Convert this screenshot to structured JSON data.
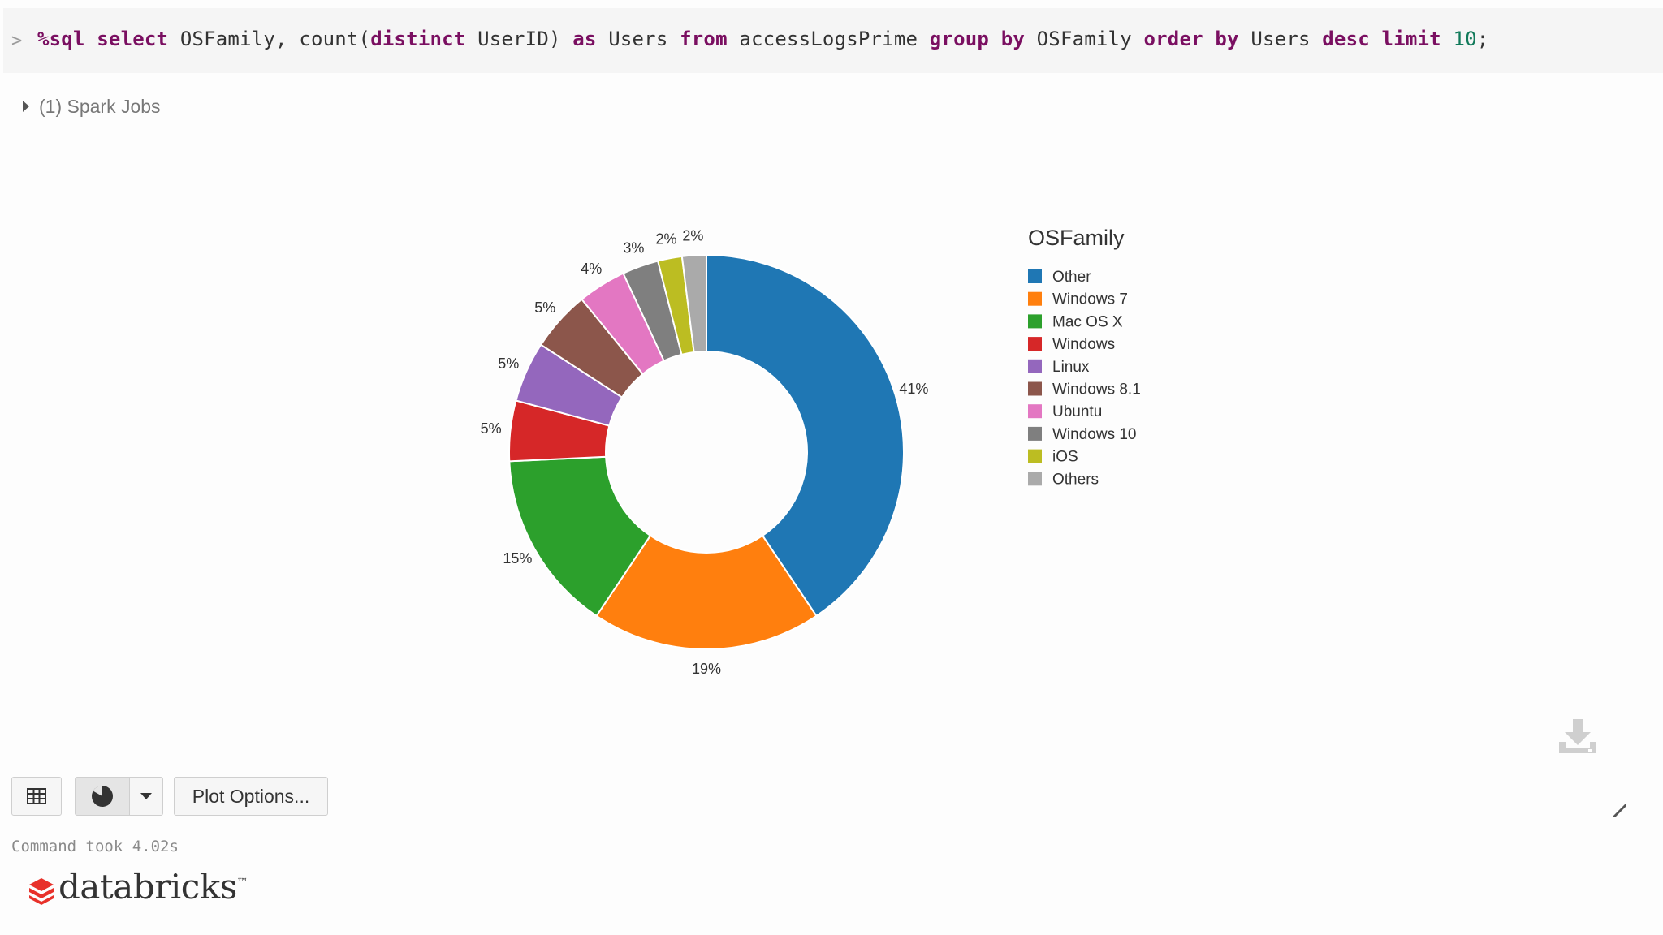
{
  "code": {
    "prompt": ">",
    "tokens": [
      {
        "t": "%sql",
        "k": "kw"
      },
      {
        "t": " ",
        "k": ""
      },
      {
        "t": "select",
        "k": "kw"
      },
      {
        "t": " OSFamily, count(",
        "k": ""
      },
      {
        "t": "distinct",
        "k": "kw"
      },
      {
        "t": " UserID) ",
        "k": ""
      },
      {
        "t": "as",
        "k": "kw"
      },
      {
        "t": " Users ",
        "k": ""
      },
      {
        "t": "from",
        "k": "kw"
      },
      {
        "t": " accessLogsPrime ",
        "k": ""
      },
      {
        "t": "group",
        "k": "kw"
      },
      {
        "t": " ",
        "k": ""
      },
      {
        "t": "by",
        "k": "kw"
      },
      {
        "t": " OSFamily ",
        "k": ""
      },
      {
        "t": "order",
        "k": "kw"
      },
      {
        "t": " ",
        "k": ""
      },
      {
        "t": "by",
        "k": "kw"
      },
      {
        "t": " Users ",
        "k": ""
      },
      {
        "t": "desc",
        "k": "kw"
      },
      {
        "t": " ",
        "k": ""
      },
      {
        "t": "limit",
        "k": "kw"
      },
      {
        "t": " ",
        "k": ""
      },
      {
        "t": "10",
        "k": "num"
      },
      {
        "t": ";",
        "k": ""
      }
    ]
  },
  "jobs": {
    "label": "(1) Spark Jobs"
  },
  "chart_data": {
    "type": "pie",
    "donut": true,
    "legend_title": "OSFamily",
    "legend_position": "right",
    "slices": [
      {
        "label": "Other",
        "value": 41,
        "display": "41%",
        "color": "#1f77b4"
      },
      {
        "label": "Windows 7",
        "value": 19,
        "display": "19%",
        "color": "#ff7f0e"
      },
      {
        "label": "Mac OS X",
        "value": 15,
        "display": "15%",
        "color": "#2ca02c"
      },
      {
        "label": "Windows",
        "value": 5,
        "display": "5%",
        "color": "#d62728"
      },
      {
        "label": "Linux",
        "value": 5,
        "display": "5%",
        "color": "#9467bd"
      },
      {
        "label": "Windows 8.1",
        "value": 5,
        "display": "5%",
        "color": "#8c564b"
      },
      {
        "label": "Ubuntu",
        "value": 4,
        "display": "4%",
        "color": "#e377c2"
      },
      {
        "label": "Windows 10",
        "value": 3,
        "display": "3%",
        "color": "#7f7f7f"
      },
      {
        "label": "iOS",
        "value": 2,
        "display": "2%",
        "color": "#bcbd22"
      },
      {
        "label": "Others",
        "value": 2,
        "display": "2%",
        "color": "#aaaaaa"
      }
    ]
  },
  "toolbar": {
    "table_icon": "table-icon",
    "pie_icon": "pie-chart-icon",
    "dropdown_icon": "caret-down-icon",
    "plot_options_label": "Plot Options..."
  },
  "status": {
    "text": "Command took 4.02s"
  },
  "brand": {
    "name": "databricks",
    "mark": "™",
    "color": "#e8312a"
  }
}
